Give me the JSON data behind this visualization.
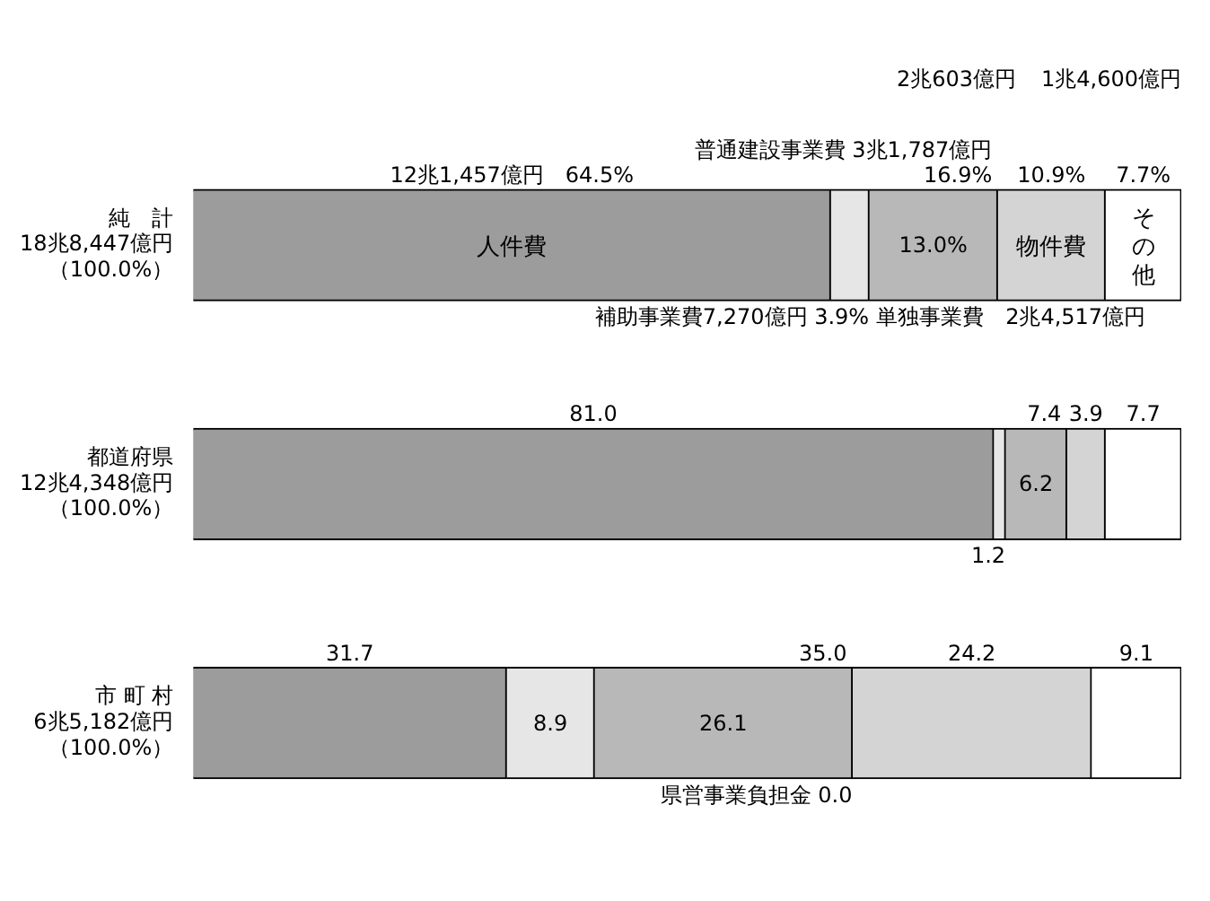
{
  "chart_data": {
    "type": "bar",
    "orientation": "horizontal",
    "stacked": true,
    "categories": [
      "純　計\n18兆8,447億円（100.0%）",
      "都道府県\n12兆4,348億円（100.0%）",
      "市 町 村\n6兆5,182億円（100.0%）"
    ],
    "series": [
      {
        "name": "人件費",
        "color": "#9c9c9c",
        "values": [
          64.5,
          81.0,
          31.7
        ],
        "value_labels": [
          "12兆1,457億円　64.5%",
          "81.0",
          "31.7"
        ]
      },
      {
        "color": "#e6e6e6",
        "values": [
          3.9,
          1.2,
          8.9
        ],
        "value_labels": [
          "補助事業費7,270億円 3.9%",
          "1.2",
          "8.9"
        ]
      },
      {
        "color": "#b8b8b8",
        "values": [
          13.0,
          6.2,
          26.1
        ],
        "value_labels": [
          "13.0%",
          "6.2",
          "26.1"
        ]
      },
      {
        "color": "#808080",
        "values": [
          null,
          null,
          0.0
        ],
        "value_labels": [
          null,
          null,
          "県営事業負担金 0.0"
        ]
      },
      {
        "name": "物件費",
        "color": "#d4d4d4",
        "values": [
          10.9,
          3.9,
          24.2
        ],
        "value_labels": [
          "10.9%",
          "3.9",
          "24.2"
        ]
      },
      {
        "name": "その他",
        "color": "#ffffff",
        "values": [
          7.7,
          7.7,
          9.1
        ],
        "value_labels": [
          "7.7%",
          "7.7",
          "9.1"
        ]
      }
    ],
    "annotations": [
      {
        "text": "単独事業費　2兆4,517億円",
        "x": 68.4,
        "y": "純　計\n18兆8,447億円（100.0%）"
      },
      {
        "text": "普通建設事業費 3兆1,787億円\n16.9%",
        "x": 81.4,
        "y": "純　計\n18兆8,447億円（100.0%）"
      },
      "2兆603億円",
      "1兆4,600億円",
      {
        "text": "7.4",
        "x": 88.4,
        "y": "都道府県\n12兆4,348億円（100.0%）"
      },
      {
        "text": "35.0",
        "x": 66.7,
        "y": "市 町 村\n6兆5,182億円（100.0%）"
      }
    ]
  }
}
